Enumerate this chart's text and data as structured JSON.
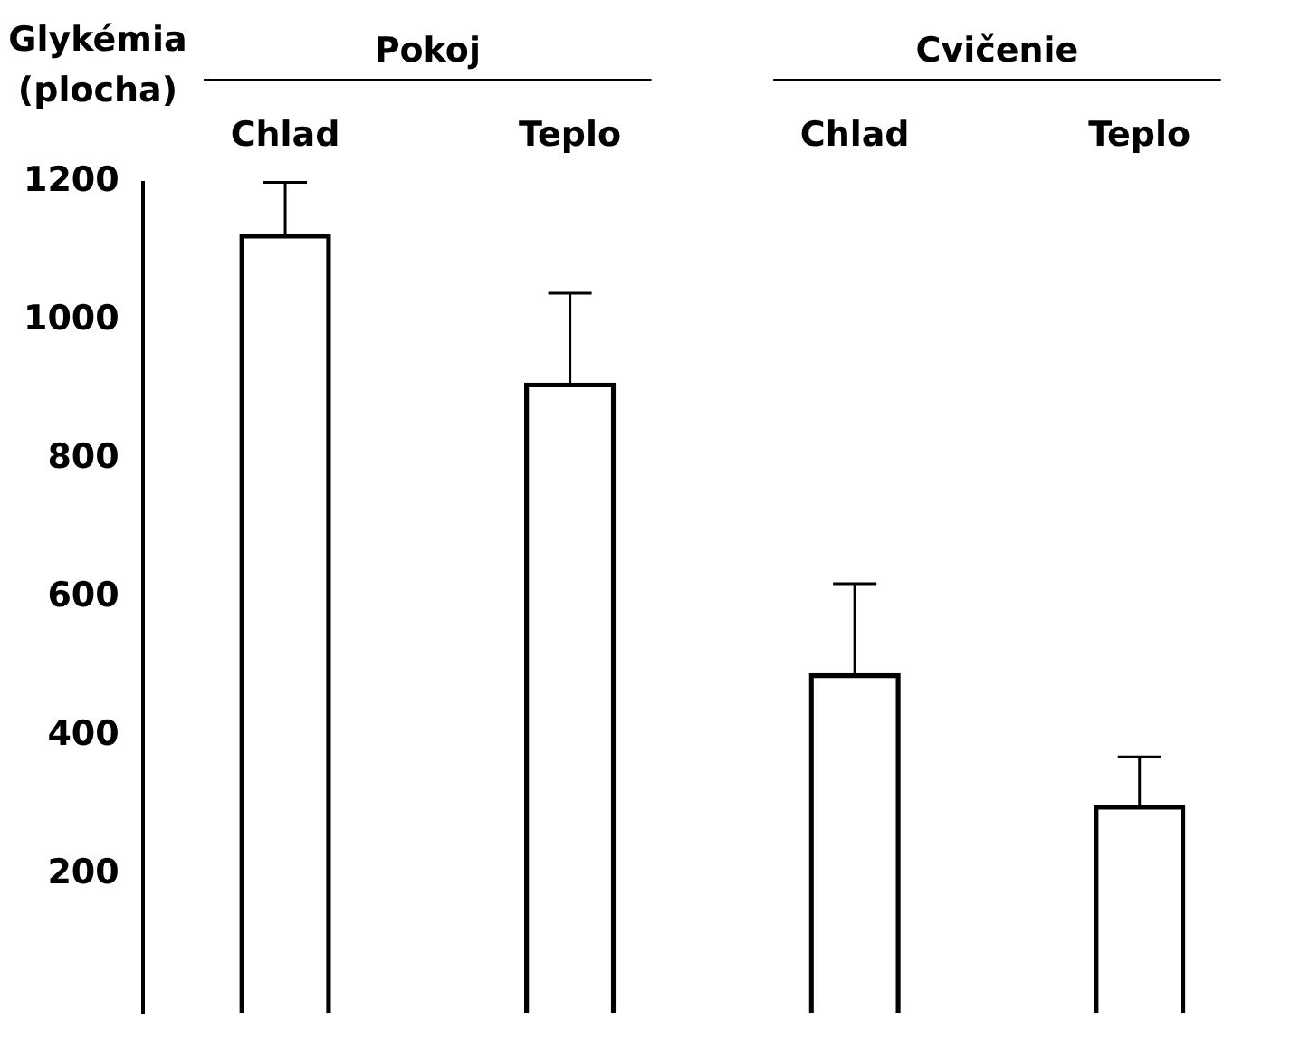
{
  "chart_data": {
    "type": "bar",
    "ylabel": "Glykémia (plocha)",
    "categories": [
      "Chlad",
      "Teplo",
      "Chlad",
      "Teplo"
    ],
    "values": [
      1125,
      910,
      490,
      300
    ],
    "colors": [
      "#000000",
      "#000000",
      "#000000",
      "#000000"
    ],
    "errors": [
      [
        1125,
        1200
      ],
      [
        910,
        1040
      ],
      [
        490,
        620
      ],
      [
        300,
        370
      ]
    ],
    "annotations": [
      "Pokoj",
      "Cvičenie"
    ],
    "ylim": [
      0,
      1200
    ],
    "yticks": [
      200,
      400,
      600,
      800,
      1000,
      1200
    ],
    "grid": false,
    "legend": false
  }
}
